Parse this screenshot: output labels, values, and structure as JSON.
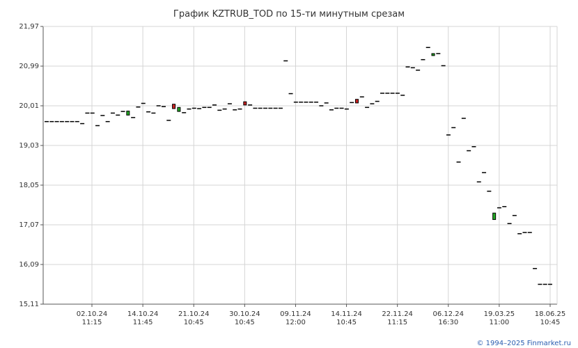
{
  "chart_data": {
    "type": "candlestick",
    "title": "График KZTRUB_TOD по 15-ти минутным срезам",
    "xlabel": "",
    "ylabel": "",
    "ylim": [
      15.11,
      21.97
    ],
    "y_ticks": [
      "21,97",
      "20,99",
      "20,01",
      "19,03",
      "18,05",
      "17,07",
      "16,09",
      "15,11"
    ],
    "x_ticks": [
      {
        "date": "02.10.24",
        "time": "11:15"
      },
      {
        "date": "14.10.24",
        "time": "11:45"
      },
      {
        "date": "21.10.24",
        "time": "10:45"
      },
      {
        "date": "30.10.24",
        "time": "10:45"
      },
      {
        "date": "09.11.24",
        "time": "12:00"
      },
      {
        "date": "14.11.24",
        "time": "10:45"
      },
      {
        "date": "22.11.24",
        "time": "11:15"
      },
      {
        "date": "06.12.24",
        "time": "16:30"
      },
      {
        "date": "19.03.25",
        "time": "11:00"
      },
      {
        "date": "18.06.25",
        "time": "10:45"
      }
    ],
    "grid": true,
    "bull_color": "#22aa22",
    "bear_color": "#cc2222",
    "series": [
      {
        "values": [
          {
            "o": 19.62,
            "c": 19.62
          },
          {
            "o": 19.62,
            "c": 19.62
          },
          {
            "o": 19.62,
            "c": 19.62
          },
          {
            "o": 19.62,
            "c": 19.62
          },
          {
            "o": 19.62,
            "c": 19.62
          },
          {
            "o": 19.62,
            "c": 19.62
          },
          {
            "o": 19.62,
            "c": 19.62
          },
          {
            "o": 19.57,
            "c": 19.57
          },
          {
            "o": 19.83,
            "c": 19.83
          },
          {
            "o": 19.83,
            "c": 19.83
          },
          {
            "o": 19.52,
            "c": 19.52
          },
          {
            "o": 19.77,
            "c": 19.77
          },
          {
            "o": 19.62,
            "c": 19.62
          },
          {
            "o": 19.83,
            "c": 19.83
          },
          {
            "o": 19.78,
            "c": 19.78
          },
          {
            "o": 19.87,
            "c": 19.87
          },
          {
            "o": 19.78,
            "c": 19.88
          },
          {
            "o": 19.72,
            "c": 19.72
          },
          {
            "o": 19.98,
            "c": 19.98
          },
          {
            "o": 20.07,
            "c": 20.07
          },
          {
            "o": 19.86,
            "c": 19.86
          },
          {
            "o": 19.83,
            "c": 19.83
          },
          {
            "o": 20.01,
            "c": 20.01
          },
          {
            "o": 19.99,
            "c": 19.99
          },
          {
            "o": 19.65,
            "c": 19.65
          },
          {
            "o": 20.05,
            "c": 19.94
          },
          {
            "o": 19.87,
            "c": 19.97
          },
          {
            "o": 19.84,
            "c": 19.84
          },
          {
            "o": 19.93,
            "c": 19.93
          },
          {
            "o": 19.95,
            "c": 19.95
          },
          {
            "o": 19.94,
            "c": 19.94
          },
          {
            "o": 19.97,
            "c": 19.97
          },
          {
            "o": 19.97,
            "c": 19.97
          },
          {
            "o": 20.03,
            "c": 20.03
          },
          {
            "o": 19.9,
            "c": 19.9
          },
          {
            "o": 19.93,
            "c": 19.93
          },
          {
            "o": 20.06,
            "c": 20.06
          },
          {
            "o": 19.91,
            "c": 19.91
          },
          {
            "o": 19.93,
            "c": 19.93
          },
          {
            "o": 20.11,
            "c": 20.03
          },
          {
            "o": 20.03,
            "c": 20.03
          },
          {
            "o": 19.95,
            "c": 19.95
          },
          {
            "o": 19.95,
            "c": 19.95
          },
          {
            "o": 19.95,
            "c": 19.95
          },
          {
            "o": 19.95,
            "c": 19.95
          },
          {
            "o": 19.95,
            "c": 19.95
          },
          {
            "o": 19.95,
            "c": 19.95
          },
          {
            "o": 21.12,
            "c": 21.12
          },
          {
            "o": 20.31,
            "c": 20.31
          },
          {
            "o": 20.1,
            "c": 20.1
          },
          {
            "o": 20.1,
            "c": 20.1
          },
          {
            "o": 20.1,
            "c": 20.1
          },
          {
            "o": 20.1,
            "c": 20.1
          },
          {
            "o": 20.1,
            "c": 20.1
          },
          {
            "o": 20.01,
            "c": 20.01
          },
          {
            "o": 20.08,
            "c": 20.08
          },
          {
            "o": 19.91,
            "c": 19.91
          },
          {
            "o": 19.95,
            "c": 19.95
          },
          {
            "o": 19.95,
            "c": 19.95
          },
          {
            "o": 19.93,
            "c": 19.93
          },
          {
            "o": 20.09,
            "c": 20.09
          },
          {
            "o": 20.17,
            "c": 20.08
          },
          {
            "o": 20.23,
            "c": 20.23
          },
          {
            "o": 19.97,
            "c": 19.97
          },
          {
            "o": 20.06,
            "c": 20.06
          },
          {
            "o": 20.12,
            "c": 20.12
          },
          {
            "o": 20.32,
            "c": 20.32
          },
          {
            "o": 20.32,
            "c": 20.32
          },
          {
            "o": 20.32,
            "c": 20.32
          },
          {
            "o": 20.32,
            "c": 20.32
          },
          {
            "o": 20.27,
            "c": 20.27
          },
          {
            "o": 20.97,
            "c": 20.97
          },
          {
            "o": 20.95,
            "c": 20.95
          },
          {
            "o": 20.89,
            "c": 20.89
          },
          {
            "o": 21.15,
            "c": 21.15
          },
          {
            "o": 21.45,
            "c": 21.45
          },
          {
            "o": 21.25,
            "c": 21.3
          },
          {
            "o": 21.3,
            "c": 21.3
          },
          {
            "o": 21.0,
            "c": 21.0
          },
          {
            "o": 19.29,
            "c": 19.29
          },
          {
            "o": 19.47,
            "c": 19.47
          },
          {
            "o": 18.62,
            "c": 18.62
          },
          {
            "o": 19.7,
            "c": 19.7
          },
          {
            "o": 18.9,
            "c": 18.9
          },
          {
            "o": 19.0,
            "c": 19.0
          },
          {
            "o": 18.13,
            "c": 18.13
          },
          {
            "o": 18.36,
            "c": 18.36
          },
          {
            "o": 17.9,
            "c": 17.9
          },
          {
            "o": 17.2,
            "c": 17.36
          },
          {
            "o": 17.49,
            "c": 17.49
          },
          {
            "o": 17.52,
            "c": 17.52
          },
          {
            "o": 17.1,
            "c": 17.1
          },
          {
            "o": 17.3,
            "c": 17.3
          },
          {
            "o": 16.85,
            "c": 16.85
          },
          {
            "o": 16.88,
            "c": 16.88
          },
          {
            "o": 16.84,
            "c": 16.88
          },
          {
            "o": 15.99,
            "c": 15.99
          },
          {
            "o": 15.6,
            "c": 15.6
          },
          {
            "o": 15.6,
            "c": 15.6
          },
          {
            "o": 15.6,
            "c": 15.6
          }
        ]
      }
    ]
  },
  "footer": {
    "copyright": "© 1994–2025 Finmarket.ru"
  },
  "colors": {
    "grid": "#d4d4d4",
    "axis": "#555555",
    "text": "#333333",
    "link": "#2a5db0",
    "candle": "#000000"
  }
}
